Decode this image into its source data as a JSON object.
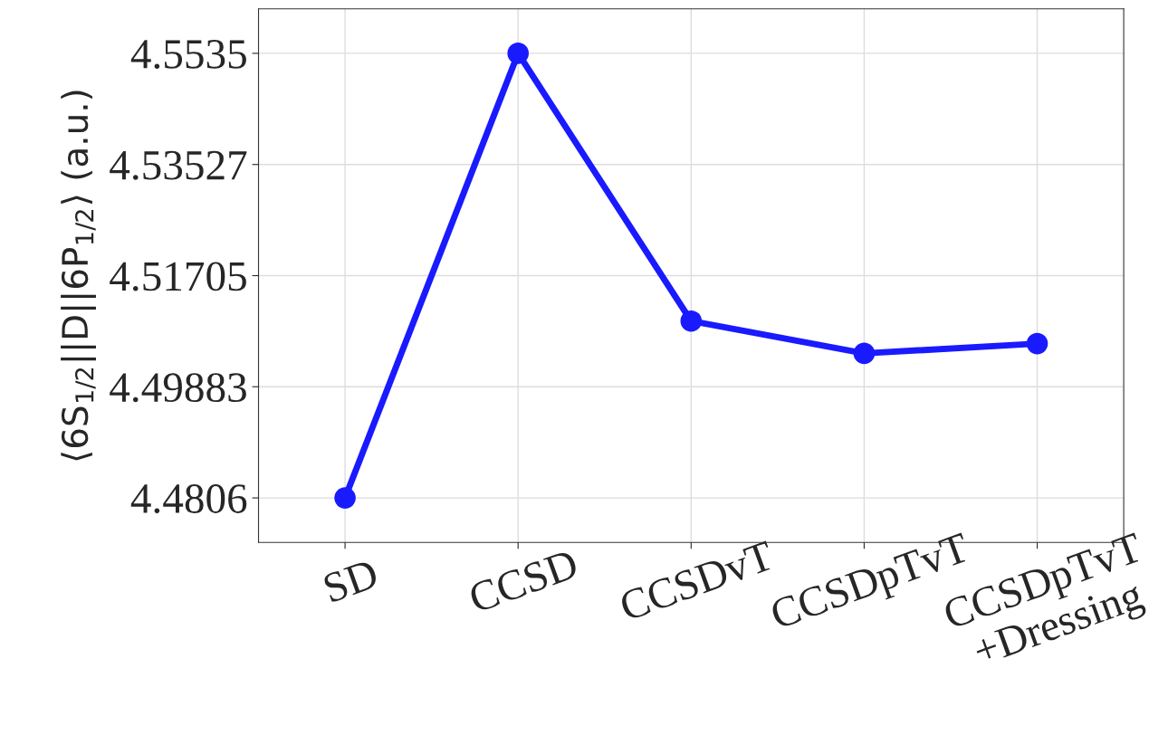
{
  "chart_data": {
    "type": "line",
    "ylabel": "⟨6S$_{1/2}$||D||6P$_{1/2}$⟩ (a.u.)",
    "categories": [
      "SD",
      "CCSD",
      "CCSDvT",
      "CCSDpTvT",
      "CCSDpTvT\n+Dressing"
    ],
    "series": [
      {
        "color": "#1a1aff",
        "values": [
          4.4806,
          4.5535,
          4.5096,
          4.5043,
          4.5059
        ]
      }
    ],
    "ylim": [
      4.4733,
      4.5608
    ],
    "yticks": [
      4.4806,
      4.49883,
      4.51705,
      4.53527,
      4.5535
    ],
    "grid": true,
    "marker": "circle",
    "line_style": "solid"
  }
}
